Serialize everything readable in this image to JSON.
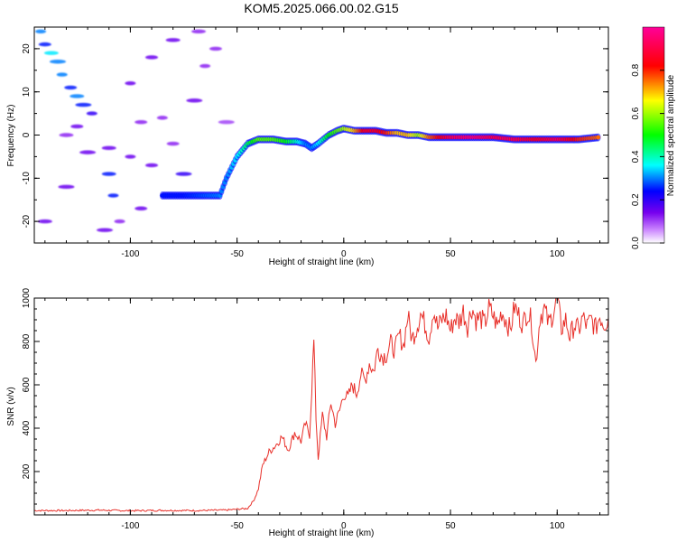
{
  "title": "KOM5.2025.066.00.02.G15",
  "chart_data": [
    {
      "type": "heatmap",
      "xlabel": "Height of straight line (km)",
      "ylabel": "Frequency (Hz)",
      "xlim": [
        -145,
        124
      ],
      "ylim": [
        -25,
        25
      ],
      "xticks": [
        -100,
        -50,
        0,
        50,
        100
      ],
      "yticks": [
        -20,
        -10,
        0,
        10,
        20
      ],
      "colorbar": {
        "label": "Normalized spectral amplitude",
        "range": [
          0,
          1
        ],
        "ticks": [
          0.0,
          0.2,
          0.4,
          0.6,
          0.8
        ],
        "colors": [
          "#ffffff",
          "#cc88ff",
          "#7700ee",
          "#0000ff",
          "#00ffff",
          "#00ff00",
          "#ffff00",
          "#ff0000",
          "#ff0099"
        ]
      },
      "ridge": [
        [
          -85,
          -14,
          0.25
        ],
        [
          -75,
          -14,
          0.25
        ],
        [
          -65,
          -14,
          0.28
        ],
        [
          -58,
          -14,
          0.3
        ],
        [
          -55,
          -10,
          0.3
        ],
        [
          -50,
          -5,
          0.35
        ],
        [
          -45,
          -2,
          0.45
        ],
        [
          -40,
          -1,
          0.55
        ],
        [
          -33,
          -1,
          0.55
        ],
        [
          -27,
          -1.5,
          0.5
        ],
        [
          -22,
          -1.5,
          0.4
        ],
        [
          -18,
          -2,
          0.3
        ],
        [
          -15,
          -3,
          0.3
        ],
        [
          -12,
          -2,
          0.35
        ],
        [
          -7,
          0,
          0.5
        ],
        [
          -3,
          1,
          0.55
        ],
        [
          0,
          1.5,
          0.6
        ],
        [
          5,
          1,
          0.7
        ],
        [
          10,
          1,
          0.85
        ],
        [
          15,
          1,
          0.85
        ],
        [
          20,
          0.5,
          0.8
        ],
        [
          25,
          0.5,
          0.7
        ],
        [
          30,
          0,
          0.7
        ],
        [
          35,
          0,
          0.6
        ],
        [
          40,
          -0.5,
          0.75
        ],
        [
          50,
          -0.5,
          0.9
        ],
        [
          60,
          -0.5,
          0.95
        ],
        [
          70,
          -0.5,
          0.9
        ],
        [
          80,
          -1,
          0.9
        ],
        [
          90,
          -1,
          0.85
        ],
        [
          100,
          -1,
          0.9
        ],
        [
          110,
          -1,
          0.8
        ],
        [
          120,
          -0.5,
          0.75
        ]
      ],
      "noise": [
        [
          -142,
          24,
          0.3
        ],
        [
          -140,
          21,
          0.25
        ],
        [
          -137,
          19,
          0.35
        ],
        [
          -134,
          17,
          0.3
        ],
        [
          -132,
          14,
          0.3
        ],
        [
          -128,
          11,
          0.25
        ],
        [
          -125,
          9,
          0.3
        ],
        [
          -122,
          7,
          0.25
        ],
        [
          -118,
          5,
          0.2
        ],
        [
          -125,
          2,
          0.15
        ],
        [
          -110,
          -3,
          0.15
        ],
        [
          -120,
          -4,
          0.15
        ],
        [
          -100,
          -5,
          0.15
        ],
        [
          -90,
          -7,
          0.15
        ],
        [
          -110,
          -9,
          0.25
        ],
        [
          -130,
          -12,
          0.15
        ],
        [
          -108,
          -14,
          0.25
        ],
        [
          -95,
          -17,
          0.15
        ],
        [
          -140,
          -20,
          0.15
        ],
        [
          -112,
          -22,
          0.15
        ],
        [
          -100,
          12,
          0.15
        ],
        [
          -90,
          18,
          0.15
        ],
        [
          -80,
          22,
          0.15
        ],
        [
          -70,
          8,
          0.15
        ],
        [
          -85,
          4,
          0.12
        ],
        [
          -80,
          -2,
          0.12
        ],
        [
          -130,
          0,
          0.12
        ],
        [
          -75,
          -9,
          0.2
        ],
        [
          -65,
          16,
          0.12
        ],
        [
          -60,
          20,
          0.12
        ],
        [
          -68,
          24,
          0.12
        ],
        [
          -55,
          3,
          0.1
        ],
        [
          -105,
          -20,
          0.12
        ],
        [
          -95,
          3,
          0.12
        ]
      ]
    },
    {
      "type": "line",
      "xlabel": "Height of straight line (km)",
      "ylabel": "SNR (v/v)",
      "xlim": [
        -145,
        124
      ],
      "ylim": [
        0,
        1000
      ],
      "xticks": [
        -100,
        -50,
        0,
        50,
        100
      ],
      "yticks": [
        200,
        400,
        600,
        800,
        1000
      ],
      "color": "#e8302a",
      "x": [
        -145,
        -130,
        -115,
        -100,
        -85,
        -70,
        -55,
        -45,
        -42,
        -40,
        -38,
        -35,
        -32,
        -29,
        -26,
        -23,
        -20,
        -18,
        -16,
        -14,
        -13,
        -12,
        -10,
        -8,
        -6,
        -4,
        -2,
        0,
        2,
        4,
        6,
        8,
        10,
        12,
        14,
        16,
        18,
        20,
        22,
        24,
        26,
        28,
        30,
        32,
        34,
        36,
        38,
        40,
        42,
        44,
        46,
        48,
        50,
        52,
        54,
        56,
        58,
        60,
        62,
        64,
        66,
        68,
        70,
        72,
        74,
        76,
        78,
        80,
        82,
        84,
        86,
        88,
        90,
        92,
        94,
        96,
        98,
        100,
        102,
        104,
        106,
        108,
        110,
        112,
        114,
        116,
        118,
        120,
        122,
        124
      ],
      "y": [
        20,
        20,
        22,
        19,
        21,
        20,
        22,
        30,
        70,
        120,
        230,
        290,
        320,
        360,
        300,
        380,
        340,
        420,
        370,
        800,
        450,
        260,
        460,
        360,
        520,
        420,
        480,
        560,
        540,
        600,
        560,
        650,
        620,
        700,
        660,
        770,
        730,
        740,
        790,
        760,
        830,
        780,
        920,
        810,
        860,
        930,
        880,
        820,
        950,
        860,
        900,
        920,
        850,
        910,
        890,
        940,
        870,
        960,
        900,
        910,
        880,
        950,
        920,
        870,
        940,
        900,
        850,
        960,
        920,
        880,
        940,
        890,
        700,
        920,
        950,
        880,
        930,
        1000,
        860,
        900,
        820,
        880,
        850,
        910,
        870,
        900,
        860,
        920,
        880,
        910
      ]
    }
  ]
}
